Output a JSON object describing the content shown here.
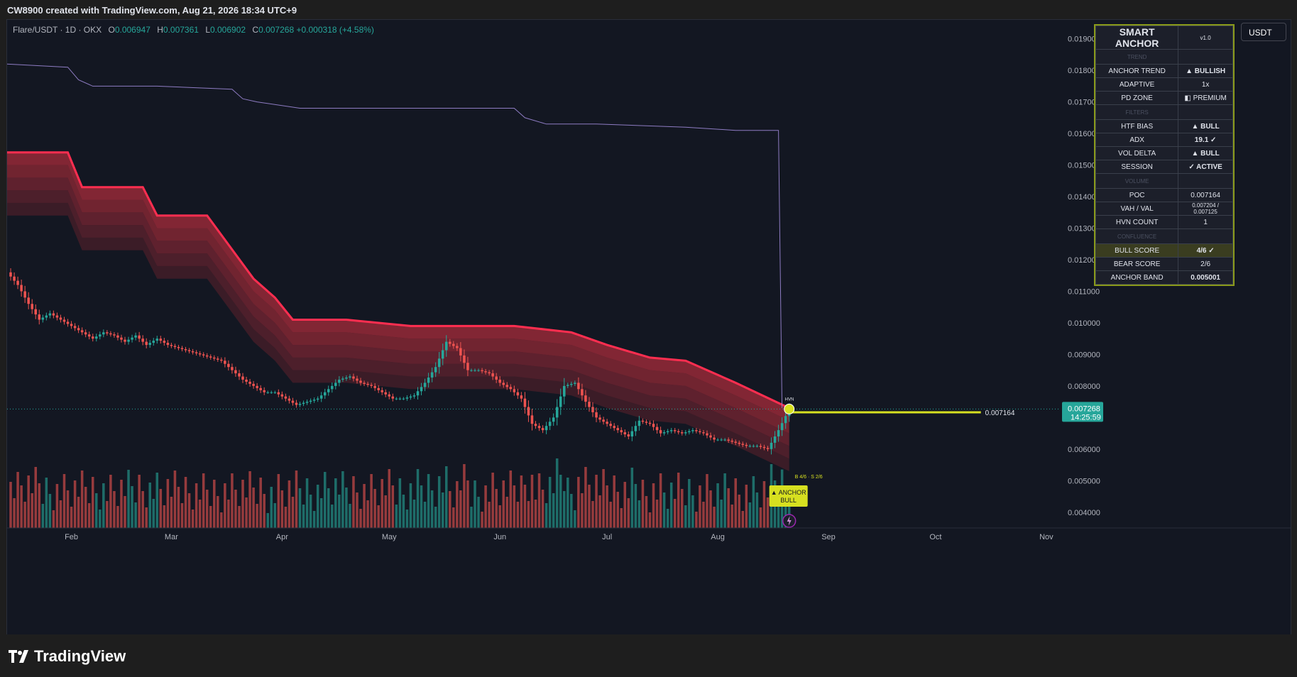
{
  "header": {
    "created_text": "CW8900 created with TradingView.com, Aug 21, 2026 18:34 UTC+9"
  },
  "symbol": {
    "title": "Flare/USDT · 1D · OKX",
    "o_label": "O",
    "o": "0.006947",
    "h_label": "H",
    "h": "0.007361",
    "l_label": "L",
    "l": "0.006902",
    "c_label": "C",
    "c": "0.007268",
    "change": "+0.000318 (+4.58%)"
  },
  "currency_button": "USDT",
  "price_axis": {
    "labels": [
      "0.019000",
      "0.018000",
      "0.017000",
      "0.016000",
      "0.015000",
      "0.014000",
      "0.013000",
      "0.012000",
      "0.011000",
      "0.010000",
      "0.009000",
      "0.008000",
      "0.006000",
      "0.005000",
      "0.004000"
    ],
    "last_price": "0.007268",
    "countdown": "14:25:59"
  },
  "time_axis": {
    "labels": [
      "Feb",
      "Mar",
      "Apr",
      "May",
      "Jun",
      "Jul",
      "Aug",
      "Sep",
      "Oct",
      "Nov"
    ]
  },
  "overlay_labels": {
    "poc_line_label": "0.007164",
    "hvn_label": "HVN",
    "score_label": "B 4/6 · S 2/6",
    "signal_line1": "▲ ANCHOR",
    "signal_line2": "BULL"
  },
  "panel": {
    "title": "SMART ANCHOR",
    "version": "v1.0",
    "sections": {
      "trend": "TREND",
      "filters": "FILTERS",
      "volume": "VOLUME",
      "confluence": "CONFLUENCE"
    },
    "rows": {
      "anchor_trend": {
        "label": "ANCHOR TREND",
        "value": "▲ BULLISH"
      },
      "adaptive": {
        "label": "ADAPTIVE",
        "value": "1x"
      },
      "pd_zone": {
        "label": "PD ZONE",
        "value": "◧ PREMIUM"
      },
      "htf_bias": {
        "label": "HTF BIAS",
        "value": "▲ BULL"
      },
      "adx": {
        "label": "ADX",
        "value": "19.1 ✓"
      },
      "vol_delta": {
        "label": "VOL DELTA",
        "value": "▲ BULL"
      },
      "session": {
        "label": "SESSION",
        "value": "✓ ACTIVE"
      },
      "poc": {
        "label": "POC",
        "value": "0.007164"
      },
      "vah_val": {
        "label": "VAH / VAL",
        "value": "0.007204 / 0.007125"
      },
      "hvn_count": {
        "label": "HVN COUNT",
        "value": "1"
      },
      "bull_score": {
        "label": "BULL SCORE",
        "value": "4/6 ✓"
      },
      "bear_score": {
        "label": "BEAR SCORE",
        "value": "2/6"
      },
      "anchor_band": {
        "label": "ANCHOR BAND",
        "value": "0.005001"
      }
    }
  },
  "footer": {
    "brand": "TradingView"
  },
  "colors": {
    "up": "#26a69a",
    "down": "#ef5350",
    "band": "#f23645",
    "accent": "#d7e020",
    "purple_line": "#8e7cc3",
    "background": "#131722"
  },
  "chart_data": {
    "type": "candlestick",
    "symbol": "Flare/USDT",
    "timeframe": "1D",
    "y_range": [
      0.0035,
      0.0196
    ],
    "x_range": [
      "2026-01-14",
      "2026-11-05"
    ],
    "close_series": {
      "x": [
        "2026-01-14",
        "2026-01-17",
        "2026-01-20",
        "2026-01-23",
        "2026-01-26",
        "2026-01-29",
        "2026-02-01",
        "2026-02-04",
        "2026-02-07",
        "2026-02-10",
        "2026-02-13",
        "2026-02-16",
        "2026-02-19",
        "2026-02-22",
        "2026-02-25",
        "2026-02-28",
        "2026-03-03",
        "2026-03-06",
        "2026-03-09",
        "2026-03-12",
        "2026-03-15",
        "2026-03-18",
        "2026-03-21",
        "2026-03-24",
        "2026-03-27",
        "2026-03-30",
        "2026-04-02",
        "2026-04-05",
        "2026-04-08",
        "2026-04-11",
        "2026-04-14",
        "2026-04-17",
        "2026-04-20",
        "2026-04-23",
        "2026-04-26",
        "2026-04-29",
        "2026-05-02",
        "2026-05-05",
        "2026-05-08",
        "2026-05-11",
        "2026-05-14",
        "2026-05-17",
        "2026-05-20",
        "2026-05-23",
        "2026-05-26",
        "2026-05-29",
        "2026-06-01",
        "2026-06-04",
        "2026-06-07",
        "2026-06-10",
        "2026-06-13",
        "2026-06-16",
        "2026-06-19",
        "2026-06-22",
        "2026-06-25",
        "2026-06-28",
        "2026-07-01",
        "2026-07-04",
        "2026-07-07",
        "2026-07-10",
        "2026-07-13",
        "2026-07-16",
        "2026-07-19",
        "2026-07-22",
        "2026-07-25",
        "2026-07-28",
        "2026-07-31",
        "2026-08-03",
        "2026-08-06",
        "2026-08-09",
        "2026-08-12",
        "2026-08-15",
        "2026-08-18",
        "2026-08-21"
      ],
      "close": [
        0.0116,
        0.0112,
        0.0106,
        0.0101,
        0.0103,
        0.0101,
        0.0099,
        0.0097,
        0.0095,
        0.0097,
        0.0096,
        0.0094,
        0.0096,
        0.0093,
        0.0095,
        0.0093,
        0.0092,
        0.0091,
        0.009,
        0.0089,
        0.0088,
        0.0085,
        0.0082,
        0.008,
        0.0078,
        0.0078,
        0.0076,
        0.0074,
        0.0075,
        0.0076,
        0.0079,
        0.0082,
        0.0083,
        0.0081,
        0.008,
        0.0078,
        0.0076,
        0.0076,
        0.0077,
        0.0081,
        0.0086,
        0.0094,
        0.0092,
        0.0085,
        0.0085,
        0.0084,
        0.0081,
        0.0079,
        0.0076,
        0.0068,
        0.0066,
        0.007,
        0.008,
        0.0081,
        0.0075,
        0.007,
        0.0068,
        0.0066,
        0.0064,
        0.0069,
        0.0068,
        0.0065,
        0.0066,
        0.0065,
        0.0066,
        0.0065,
        0.0063,
        0.0063,
        0.0062,
        0.0061,
        0.0061,
        0.006,
        0.0066,
        0.00727
      ]
    },
    "anchor_band_upper": {
      "x": [
        "2026-01-14",
        "2026-01-31",
        "2026-02-04",
        "2026-02-21",
        "2026-02-25",
        "2026-03-11",
        "2026-03-24",
        "2026-03-30",
        "2026-04-04",
        "2026-04-19",
        "2026-05-07",
        "2026-06-05",
        "2026-06-21",
        "2026-07-01",
        "2026-07-13",
        "2026-07-23",
        "2026-08-06",
        "2026-08-21"
      ],
      "y": [
        0.0154,
        0.0154,
        0.0143,
        0.0143,
        0.0134,
        0.0134,
        0.0114,
        0.0108,
        0.0101,
        0.0101,
        0.0099,
        0.0099,
        0.0097,
        0.0093,
        0.0089,
        0.0088,
        0.0081,
        0.0073
      ]
    },
    "upper_line": {
      "x": [
        "2026-01-14",
        "2026-01-31",
        "2026-02-03",
        "2026-02-07",
        "2026-02-25",
        "2026-03-18",
        "2026-03-21",
        "2026-03-25",
        "2026-04-06",
        "2026-06-05",
        "2026-06-08",
        "2026-06-14",
        "2026-06-28",
        "2026-07-23",
        "2026-08-06",
        "2026-08-18",
        "2026-08-19"
      ],
      "y": [
        0.0182,
        0.0181,
        0.0177,
        0.0175,
        0.0175,
        0.0174,
        0.0171,
        0.017,
        0.0168,
        0.0168,
        0.0165,
        0.0163,
        0.0163,
        0.0162,
        0.0161,
        0.0161,
        0.0073
      ]
    },
    "poc": 0.007164,
    "last_price": 0.007268,
    "grid": false,
    "legend": "none"
  }
}
